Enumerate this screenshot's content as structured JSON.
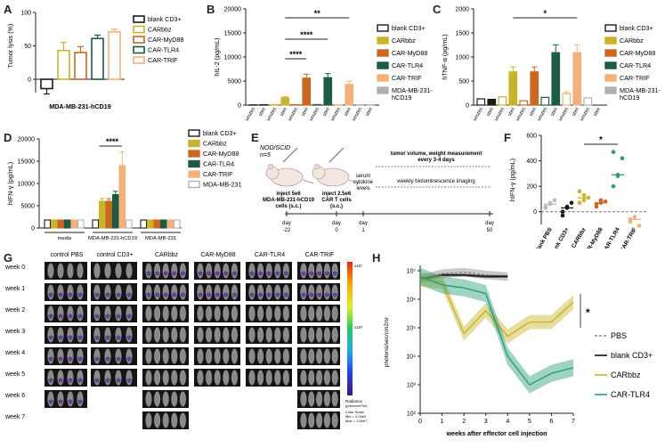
{
  "panel_labels": [
    "A",
    "B",
    "C",
    "D",
    "E",
    "F",
    "G",
    "H"
  ],
  "colors": {
    "blank": "#1a1a1a",
    "carbbz": "#c8b428",
    "myd88": "#cc6622",
    "tlr4": "#1a5c45",
    "trif": "#f5b07a",
    "mda": "#b0b0b0",
    "pbs": "#888888",
    "teal": "#2a9d7a"
  },
  "chart_data": [
    {
      "id": "A",
      "type": "bar",
      "ylabel": "Tumor lysis (%)",
      "xlabel": "MDA-MB-231-hCD19",
      "ylim": [
        -20,
        100
      ],
      "yticks": [
        "0",
        "50",
        "100"
      ],
      "series": [
        {
          "name": "blank CD3+",
          "value": -14,
          "err": 8
        },
        {
          "name": "CARbbz",
          "value": 43,
          "err": 12
        },
        {
          "name": "CAR-MyD88",
          "value": 40,
          "err": 9
        },
        {
          "name": "CAR-TLR4",
          "value": 61,
          "err": 5
        },
        {
          "name": "CAR-TRIF",
          "value": 71,
          "err": 4
        }
      ],
      "legend": [
        "blank CD3+",
        "CARbbz",
        "CAR-MyD88",
        "CAR-TLR4",
        "CAR-TRIF"
      ]
    },
    {
      "id": "B",
      "type": "bar",
      "ylabel": "hIL-2 (pg/mL)",
      "ylim": [
        0,
        20000
      ],
      "yticks": [
        "0",
        "5000",
        "10000",
        "15000",
        "20000"
      ],
      "categories": [
        "unstim",
        "stim",
        "unstim",
        "stim",
        "unstim",
        "stim",
        "unstim",
        "stim",
        "unstim",
        "stim",
        "unstim",
        "stim"
      ],
      "values": [
        50,
        80,
        100,
        1500,
        100,
        5600,
        100,
        5700,
        100,
        4300,
        50,
        60
      ],
      "significance": [
        "****",
        "****",
        "**"
      ],
      "legend": [
        "blank CD3+",
        "CARbbz",
        "CAR-MyD88",
        "CAR-TLR4",
        "CAR-TRIF",
        "MDA-MB-231-hCD19"
      ]
    },
    {
      "id": "C",
      "type": "bar",
      "ylabel": "hTNF-α (pg/mL)",
      "ylim": [
        0,
        2000
      ],
      "yticks": [
        "0",
        "500",
        "1000",
        "1500",
        "2000"
      ],
      "categories": [
        "unstim",
        "stim",
        "unstim",
        "stim",
        "unstim",
        "stim",
        "unstim",
        "stim",
        "unstim",
        "stim",
        "unstim",
        "stim"
      ],
      "values": [
        130,
        120,
        170,
        690,
        90,
        690,
        160,
        1090,
        240,
        1090,
        150,
        null
      ],
      "significance": [
        "*"
      ],
      "legend": [
        "blank CD3+",
        "CARbbz",
        "CAR-MyD88",
        "CAR-TLR4",
        "CAR-TRIF",
        "MDA-MB-231-hCD19"
      ]
    },
    {
      "id": "D",
      "type": "bar",
      "ylabel": "hIFN-γ (pg/mL)",
      "ylim": [
        0,
        20000
      ],
      "yticks": [
        "0",
        "5000",
        "10000",
        "15000",
        "20000"
      ],
      "groups": [
        "media",
        "MDA-MB-231-hCD19",
        "MDA-MB-231"
      ],
      "series": [
        {
          "name": "blank CD3+",
          "values": [
            1800,
            1800,
            1800
          ]
        },
        {
          "name": "CARbbz",
          "values": [
            1800,
            6000,
            1800
          ]
        },
        {
          "name": "CAR-MyD88",
          "values": [
            1800,
            6000,
            1800
          ]
        },
        {
          "name": "CAR-TLR4",
          "values": [
            1800,
            7500,
            1800
          ]
        },
        {
          "name": "CAR-TRIF",
          "values": [
            1800,
            14000,
            1800
          ]
        },
        {
          "name": "MDA-MB-231",
          "values": [
            1800,
            1800,
            1800
          ]
        }
      ],
      "significance": [
        "****"
      ],
      "legend": [
        "blank CD3+",
        "CARbbz",
        "CAR-MyD88",
        "CAR-TLR4",
        "CAR-TRIF",
        "MDA-MB-231"
      ]
    },
    {
      "id": "F",
      "type": "scatter",
      "ylabel": "hIFN-γ (pg/mL)",
      "ylim": [
        -100,
        600
      ],
      "yticks": [
        "0",
        "200",
        "400",
        "600"
      ],
      "categories": [
        "blank PBS",
        "blank CD3+",
        "CARbbz",
        "CAR-MyD88",
        "CAR-TLR4",
        "CAR-TRIF"
      ],
      "points": [
        [
          40,
          70,
          90,
          30,
          60
        ],
        [
          0,
          30,
          70,
          -30,
          40
        ],
        [
          70,
          130,
          110,
          160,
          90
        ],
        [
          60,
          90,
          80,
          40,
          70
        ],
        [
          200,
          290,
          420,
          470,
          280
        ],
        [
          -80,
          -40,
          -110,
          -60
        ]
      ],
      "means": [
        60,
        30,
        110,
        70,
        290,
        -60
      ],
      "significance": [
        "*"
      ]
    },
    {
      "id": "H",
      "type": "line",
      "ylabel": "photons/sec/cm2/sr",
      "xlabel": "weeks after effector cell injection",
      "xlim": [
        0,
        7
      ],
      "xticks": [
        "0",
        "1",
        "2",
        "3",
        "4",
        "5",
        "6",
        "7"
      ],
      "ylim_log": [
        2,
        7
      ],
      "yticks": [
        "10²",
        "10³",
        "10⁴",
        "10⁵",
        "10⁶",
        "10⁷"
      ],
      "series": [
        {
          "name": "PBS",
          "x": [
            0,
            1,
            2,
            3,
            4
          ],
          "y": [
            6.7,
            6.9,
            6.95,
            6.85,
            6.8
          ]
        },
        {
          "name": "blank CD3+",
          "x": [
            0,
            1,
            2,
            3,
            4
          ],
          "y": [
            6.7,
            6.85,
            6.85,
            6.8,
            6.8
          ]
        },
        {
          "name": "CARbbz",
          "x": [
            0,
            1,
            2,
            3,
            4,
            5,
            6,
            7
          ],
          "y": [
            6.7,
            6.6,
            4.8,
            5.6,
            4.7,
            5.2,
            5.2,
            5.9
          ]
        },
        {
          "name": "CAR-TLR4",
          "x": [
            0,
            1,
            2,
            3,
            4,
            5,
            6,
            7
          ],
          "y": [
            6.8,
            6.5,
            6.4,
            6.2,
            4.0,
            3.0,
            3.4,
            3.6
          ]
        }
      ],
      "significance": "*",
      "legend": [
        "PBS",
        "blank CD3+",
        "CARbbz",
        "CAR-TLR4"
      ]
    }
  ],
  "panelE": {
    "mouse_label": "NOD/SCID",
    "n_label": "n=5",
    "step1": "inject 5e6",
    "step1b": "MDA-MB-231-hCD19",
    "step1c": "cells (s.c.)",
    "step2": "inject 2.5e6",
    "step2b": "CAR T cells",
    "step2c": "(s.c.)",
    "step3": "serum",
    "step3b": "cytokine",
    "step3c": "levels",
    "measure1": "tumor volume, weight measurement",
    "measure2": "every  3-4 days",
    "imaging": "weekly bioluminescence imaging",
    "day_word": "day",
    "days": [
      "-22",
      "0",
      "1",
      "50"
    ]
  },
  "panelG": {
    "columns": [
      "control PBS",
      "control CD3+",
      "CARbbz",
      "CAR-MyD88",
      "CAR-TLR4",
      "CAR-TRIF"
    ],
    "weeks": [
      "week 0",
      "week 1",
      "week 2",
      "week 3",
      "week 4",
      "week 5",
      "week 6",
      "week 7"
    ],
    "scale_top": "x10⁷",
    "scale_mid": "x10⁶",
    "scale_label": "Radiance",
    "scale_unit": "(p/sec/cm²/sr)",
    "scale_note1": "Color Scale",
    "scale_note2": "Min = 2.00e5",
    "scale_note3": "Max = 1.00e7"
  }
}
